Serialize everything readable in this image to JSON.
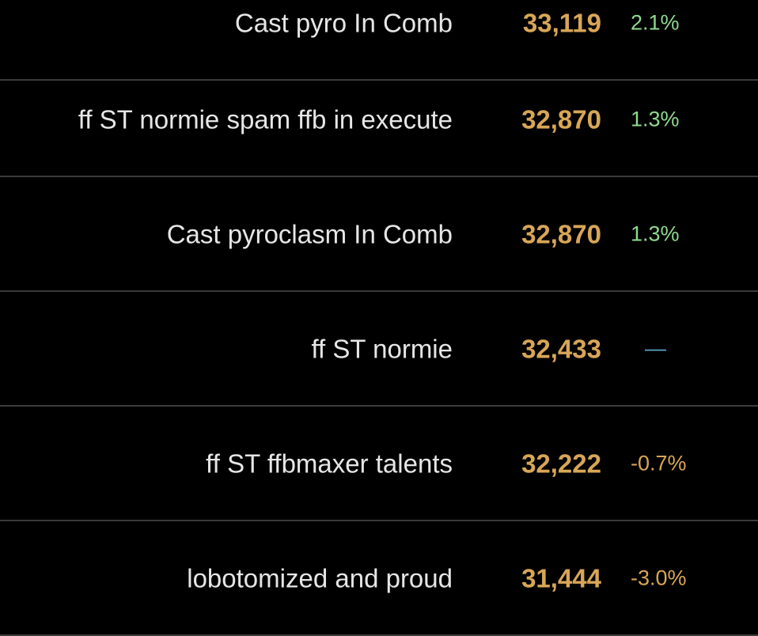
{
  "rows": [
    {
      "name": "Cast pyro In Comb",
      "dps": "33,119",
      "delta": "2.1%",
      "delta_type": "up"
    },
    {
      "name": "ff ST normie spam ffb in execute",
      "dps": "32,870",
      "delta": "1.3%",
      "delta_type": "up"
    },
    {
      "name": "Cast pyroclasm In Comb",
      "dps": "32,870",
      "delta": "1.3%",
      "delta_type": "up"
    },
    {
      "name": "ff ST normie",
      "dps": "32,433",
      "delta": "—",
      "delta_type": "base"
    },
    {
      "name": "ff ST ffbmaxer talents",
      "dps": "32,222",
      "delta": "-0.7%",
      "delta_type": "down"
    },
    {
      "name": "lobotomized and proud",
      "dps": "31,444",
      "delta": "-3.0%",
      "delta_type": "down"
    }
  ],
  "colors": {
    "background": "#000000",
    "name_text": "#e6e6e6",
    "dps_text": "#d8a657",
    "delta_up": "#8fd98f",
    "delta_down": "#d8a657",
    "delta_base": "#5aa6c8",
    "divider": "#3a3a3a"
  }
}
